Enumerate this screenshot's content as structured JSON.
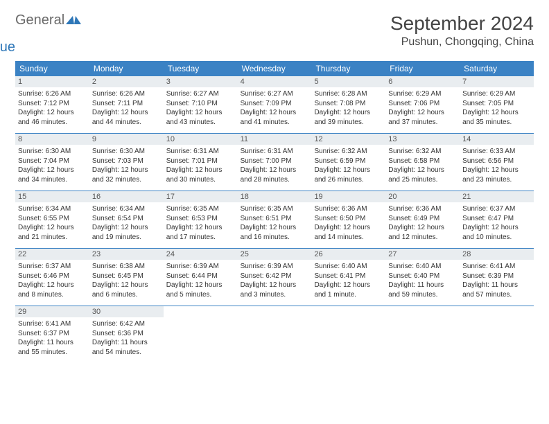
{
  "logo": {
    "general": "General",
    "blue": "Blue"
  },
  "title": "September 2024",
  "location": "Pushun, Chongqing, China",
  "day_names": [
    "Sunday",
    "Monday",
    "Tuesday",
    "Wednesday",
    "Thursday",
    "Friday",
    "Saturday"
  ],
  "header_bg": "#3b82c4",
  "daynum_bg": "#e9edf0",
  "weeks": [
    [
      {
        "n": "1",
        "sr": "Sunrise: 6:26 AM",
        "ss": "Sunset: 7:12 PM",
        "d1": "Daylight: 12 hours",
        "d2": "and 46 minutes."
      },
      {
        "n": "2",
        "sr": "Sunrise: 6:26 AM",
        "ss": "Sunset: 7:11 PM",
        "d1": "Daylight: 12 hours",
        "d2": "and 44 minutes."
      },
      {
        "n": "3",
        "sr": "Sunrise: 6:27 AM",
        "ss": "Sunset: 7:10 PM",
        "d1": "Daylight: 12 hours",
        "d2": "and 43 minutes."
      },
      {
        "n": "4",
        "sr": "Sunrise: 6:27 AM",
        "ss": "Sunset: 7:09 PM",
        "d1": "Daylight: 12 hours",
        "d2": "and 41 minutes."
      },
      {
        "n": "5",
        "sr": "Sunrise: 6:28 AM",
        "ss": "Sunset: 7:08 PM",
        "d1": "Daylight: 12 hours",
        "d2": "and 39 minutes."
      },
      {
        "n": "6",
        "sr": "Sunrise: 6:29 AM",
        "ss": "Sunset: 7:06 PM",
        "d1": "Daylight: 12 hours",
        "d2": "and 37 minutes."
      },
      {
        "n": "7",
        "sr": "Sunrise: 6:29 AM",
        "ss": "Sunset: 7:05 PM",
        "d1": "Daylight: 12 hours",
        "d2": "and 35 minutes."
      }
    ],
    [
      {
        "n": "8",
        "sr": "Sunrise: 6:30 AM",
        "ss": "Sunset: 7:04 PM",
        "d1": "Daylight: 12 hours",
        "d2": "and 34 minutes."
      },
      {
        "n": "9",
        "sr": "Sunrise: 6:30 AM",
        "ss": "Sunset: 7:03 PM",
        "d1": "Daylight: 12 hours",
        "d2": "and 32 minutes."
      },
      {
        "n": "10",
        "sr": "Sunrise: 6:31 AM",
        "ss": "Sunset: 7:01 PM",
        "d1": "Daylight: 12 hours",
        "d2": "and 30 minutes."
      },
      {
        "n": "11",
        "sr": "Sunrise: 6:31 AM",
        "ss": "Sunset: 7:00 PM",
        "d1": "Daylight: 12 hours",
        "d2": "and 28 minutes."
      },
      {
        "n": "12",
        "sr": "Sunrise: 6:32 AM",
        "ss": "Sunset: 6:59 PM",
        "d1": "Daylight: 12 hours",
        "d2": "and 26 minutes."
      },
      {
        "n": "13",
        "sr": "Sunrise: 6:32 AM",
        "ss": "Sunset: 6:58 PM",
        "d1": "Daylight: 12 hours",
        "d2": "and 25 minutes."
      },
      {
        "n": "14",
        "sr": "Sunrise: 6:33 AM",
        "ss": "Sunset: 6:56 PM",
        "d1": "Daylight: 12 hours",
        "d2": "and 23 minutes."
      }
    ],
    [
      {
        "n": "15",
        "sr": "Sunrise: 6:34 AM",
        "ss": "Sunset: 6:55 PM",
        "d1": "Daylight: 12 hours",
        "d2": "and 21 minutes."
      },
      {
        "n": "16",
        "sr": "Sunrise: 6:34 AM",
        "ss": "Sunset: 6:54 PM",
        "d1": "Daylight: 12 hours",
        "d2": "and 19 minutes."
      },
      {
        "n": "17",
        "sr": "Sunrise: 6:35 AM",
        "ss": "Sunset: 6:53 PM",
        "d1": "Daylight: 12 hours",
        "d2": "and 17 minutes."
      },
      {
        "n": "18",
        "sr": "Sunrise: 6:35 AM",
        "ss": "Sunset: 6:51 PM",
        "d1": "Daylight: 12 hours",
        "d2": "and 16 minutes."
      },
      {
        "n": "19",
        "sr": "Sunrise: 6:36 AM",
        "ss": "Sunset: 6:50 PM",
        "d1": "Daylight: 12 hours",
        "d2": "and 14 minutes."
      },
      {
        "n": "20",
        "sr": "Sunrise: 6:36 AM",
        "ss": "Sunset: 6:49 PM",
        "d1": "Daylight: 12 hours",
        "d2": "and 12 minutes."
      },
      {
        "n": "21",
        "sr": "Sunrise: 6:37 AM",
        "ss": "Sunset: 6:47 PM",
        "d1": "Daylight: 12 hours",
        "d2": "and 10 minutes."
      }
    ],
    [
      {
        "n": "22",
        "sr": "Sunrise: 6:37 AM",
        "ss": "Sunset: 6:46 PM",
        "d1": "Daylight: 12 hours",
        "d2": "and 8 minutes."
      },
      {
        "n": "23",
        "sr": "Sunrise: 6:38 AM",
        "ss": "Sunset: 6:45 PM",
        "d1": "Daylight: 12 hours",
        "d2": "and 6 minutes."
      },
      {
        "n": "24",
        "sr": "Sunrise: 6:39 AM",
        "ss": "Sunset: 6:44 PM",
        "d1": "Daylight: 12 hours",
        "d2": "and 5 minutes."
      },
      {
        "n": "25",
        "sr": "Sunrise: 6:39 AM",
        "ss": "Sunset: 6:42 PM",
        "d1": "Daylight: 12 hours",
        "d2": "and 3 minutes."
      },
      {
        "n": "26",
        "sr": "Sunrise: 6:40 AM",
        "ss": "Sunset: 6:41 PM",
        "d1": "Daylight: 12 hours",
        "d2": "and 1 minute."
      },
      {
        "n": "27",
        "sr": "Sunrise: 6:40 AM",
        "ss": "Sunset: 6:40 PM",
        "d1": "Daylight: 11 hours",
        "d2": "and 59 minutes."
      },
      {
        "n": "28",
        "sr": "Sunrise: 6:41 AM",
        "ss": "Sunset: 6:39 PM",
        "d1": "Daylight: 11 hours",
        "d2": "and 57 minutes."
      }
    ],
    [
      {
        "n": "29",
        "sr": "Sunrise: 6:41 AM",
        "ss": "Sunset: 6:37 PM",
        "d1": "Daylight: 11 hours",
        "d2": "and 55 minutes."
      },
      {
        "n": "30",
        "sr": "Sunrise: 6:42 AM",
        "ss": "Sunset: 6:36 PM",
        "d1": "Daylight: 11 hours",
        "d2": "and 54 minutes."
      },
      null,
      null,
      null,
      null,
      null
    ]
  ]
}
